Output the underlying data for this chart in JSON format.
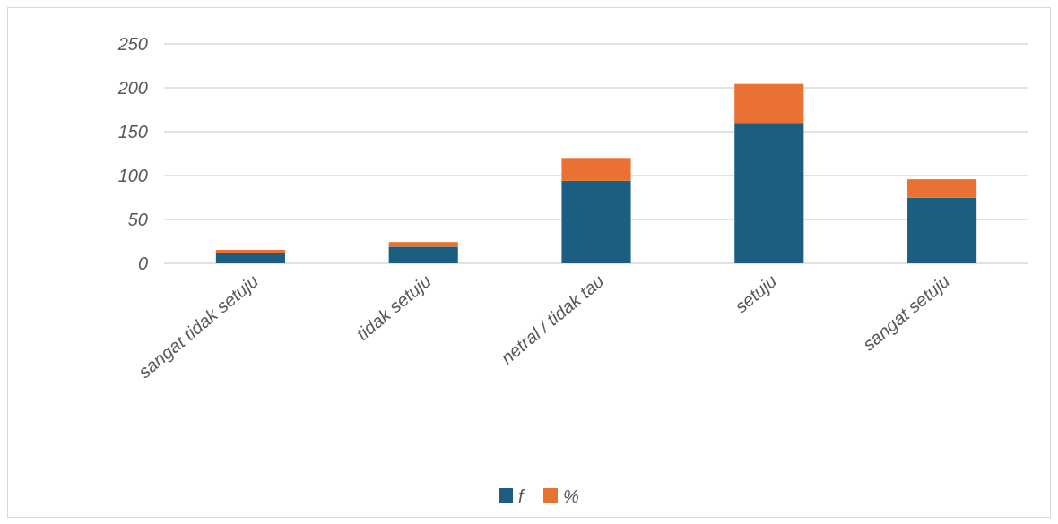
{
  "chart_data": {
    "type": "bar",
    "stacked": true,
    "categories": [
      "sangat tidak setuju",
      "tidak setuju",
      "netral / tidak tau",
      "setuju",
      "sangat setuju"
    ],
    "series": [
      {
        "name": "f",
        "color": "#1b5e7f",
        "values": [
          12,
          19,
          94,
          160,
          75
        ]
      },
      {
        "name": "%",
        "color": "#e97132",
        "values": [
          3.3,
          5.3,
          26.1,
          44.4,
          20.8
        ]
      }
    ],
    "ylim": [
      0,
      250
    ],
    "yticks": [
      0,
      50,
      100,
      150,
      200,
      250
    ],
    "grid": "y",
    "legend": "bottom"
  }
}
